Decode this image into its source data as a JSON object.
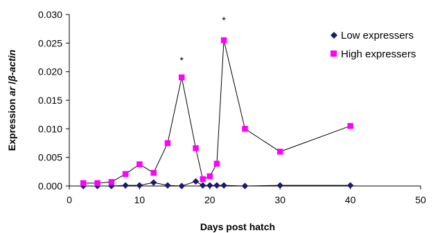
{
  "chart_data": {
    "type": "scatter",
    "title": "",
    "xlabel": "Days post hatch",
    "ylabel_parts": [
      "Expression ",
      "ar",
      " /",
      "β-actin"
    ],
    "xlim": [
      0,
      50
    ],
    "ylim": [
      0,
      0.03
    ],
    "x_ticks": [
      "0",
      "10",
      "20",
      "30",
      "40",
      "50"
    ],
    "y_ticks": [
      "0.000",
      "0.005",
      "0.010",
      "0.015",
      "0.020",
      "0.025",
      "0.030"
    ],
    "grid": false,
    "legend_position": "top-right",
    "series": [
      {
        "name": "Low expressers",
        "marker": "diamond",
        "color": "#1a1a6e",
        "points": [
          [
            2,
            0.0
          ],
          [
            4,
            0.0
          ],
          [
            6,
            0.0
          ],
          [
            8,
            0.0001
          ],
          [
            10,
            0.0001
          ],
          [
            12,
            0.0006
          ],
          [
            14,
            0.0001
          ],
          [
            16,
            0.0
          ],
          [
            18,
            0.0008
          ],
          [
            19,
            0.0001
          ],
          [
            20,
            0.0001
          ],
          [
            21,
            0.0001
          ],
          [
            22,
            0.0001
          ],
          [
            25,
            0.0
          ],
          [
            30,
            0.0001
          ],
          [
            40,
            0.0001
          ]
        ]
      },
      {
        "name": "High expressers",
        "marker": "square",
        "color": "#ff00ff",
        "points": [
          [
            2,
            0.0005
          ],
          [
            4,
            0.0005
          ],
          [
            6,
            0.0007
          ],
          [
            8,
            0.0021
          ],
          [
            10,
            0.0038
          ],
          [
            12,
            0.0023
          ],
          [
            14,
            0.0075
          ],
          [
            16,
            0.019
          ],
          [
            18,
            0.0066
          ],
          [
            19,
            0.0012
          ],
          [
            20,
            0.0017
          ],
          [
            21,
            0.0039
          ],
          [
            22,
            0.0255
          ],
          [
            25,
            0.01
          ],
          [
            30,
            0.006
          ],
          [
            40,
            0.0105
          ]
        ]
      }
    ],
    "annotations": [
      {
        "text": "*",
        "x": 16,
        "y": 0.0225
      },
      {
        "text": "*",
        "x": 22,
        "y": 0.0295
      }
    ]
  }
}
